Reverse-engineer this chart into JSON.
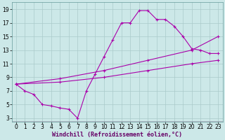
{
  "bg_color": "#cce8e8",
  "grid_color": "#aacaca",
  "line_color": "#aa00aa",
  "xlabel": "Windchill (Refroidissement éolien,°C)",
  "xlim": [
    -0.5,
    23.5
  ],
  "ylim": [
    2.5,
    20.0
  ],
  "xticks": [
    0,
    1,
    2,
    3,
    4,
    5,
    6,
    7,
    8,
    9,
    10,
    11,
    12,
    13,
    14,
    15,
    16,
    17,
    18,
    19,
    20,
    21,
    22,
    23
  ],
  "yticks": [
    3,
    5,
    7,
    9,
    11,
    13,
    15,
    17,
    19
  ],
  "line1_x": [
    0,
    1,
    2,
    3,
    4,
    5,
    6,
    7,
    8,
    9,
    10,
    11,
    12,
    13,
    14,
    15,
    16,
    17,
    18,
    19,
    20,
    21,
    22,
    23
  ],
  "line1_y": [
    8.0,
    7.0,
    6.5,
    5.0,
    4.8,
    4.5,
    4.3,
    3.0,
    7.0,
    9.5,
    12.0,
    14.5,
    17.0,
    17.0,
    18.8,
    18.8,
    17.5,
    17.5,
    16.5,
    15.0,
    13.2,
    13.0,
    12.5,
    12.5
  ],
  "line2_x": [
    0,
    5,
    10,
    15,
    20,
    23
  ],
  "line2_y": [
    8.0,
    8.8,
    10.0,
    11.5,
    13.0,
    15.0
  ],
  "line3_x": [
    0,
    5,
    10,
    15,
    20,
    23
  ],
  "line3_y": [
    8.0,
    8.3,
    9.0,
    10.0,
    11.0,
    11.5
  ],
  "marker": "+",
  "markersize": 3,
  "linewidth": 0.8,
  "xlabel_fontsize": 6,
  "tick_fontsize": 5.5
}
